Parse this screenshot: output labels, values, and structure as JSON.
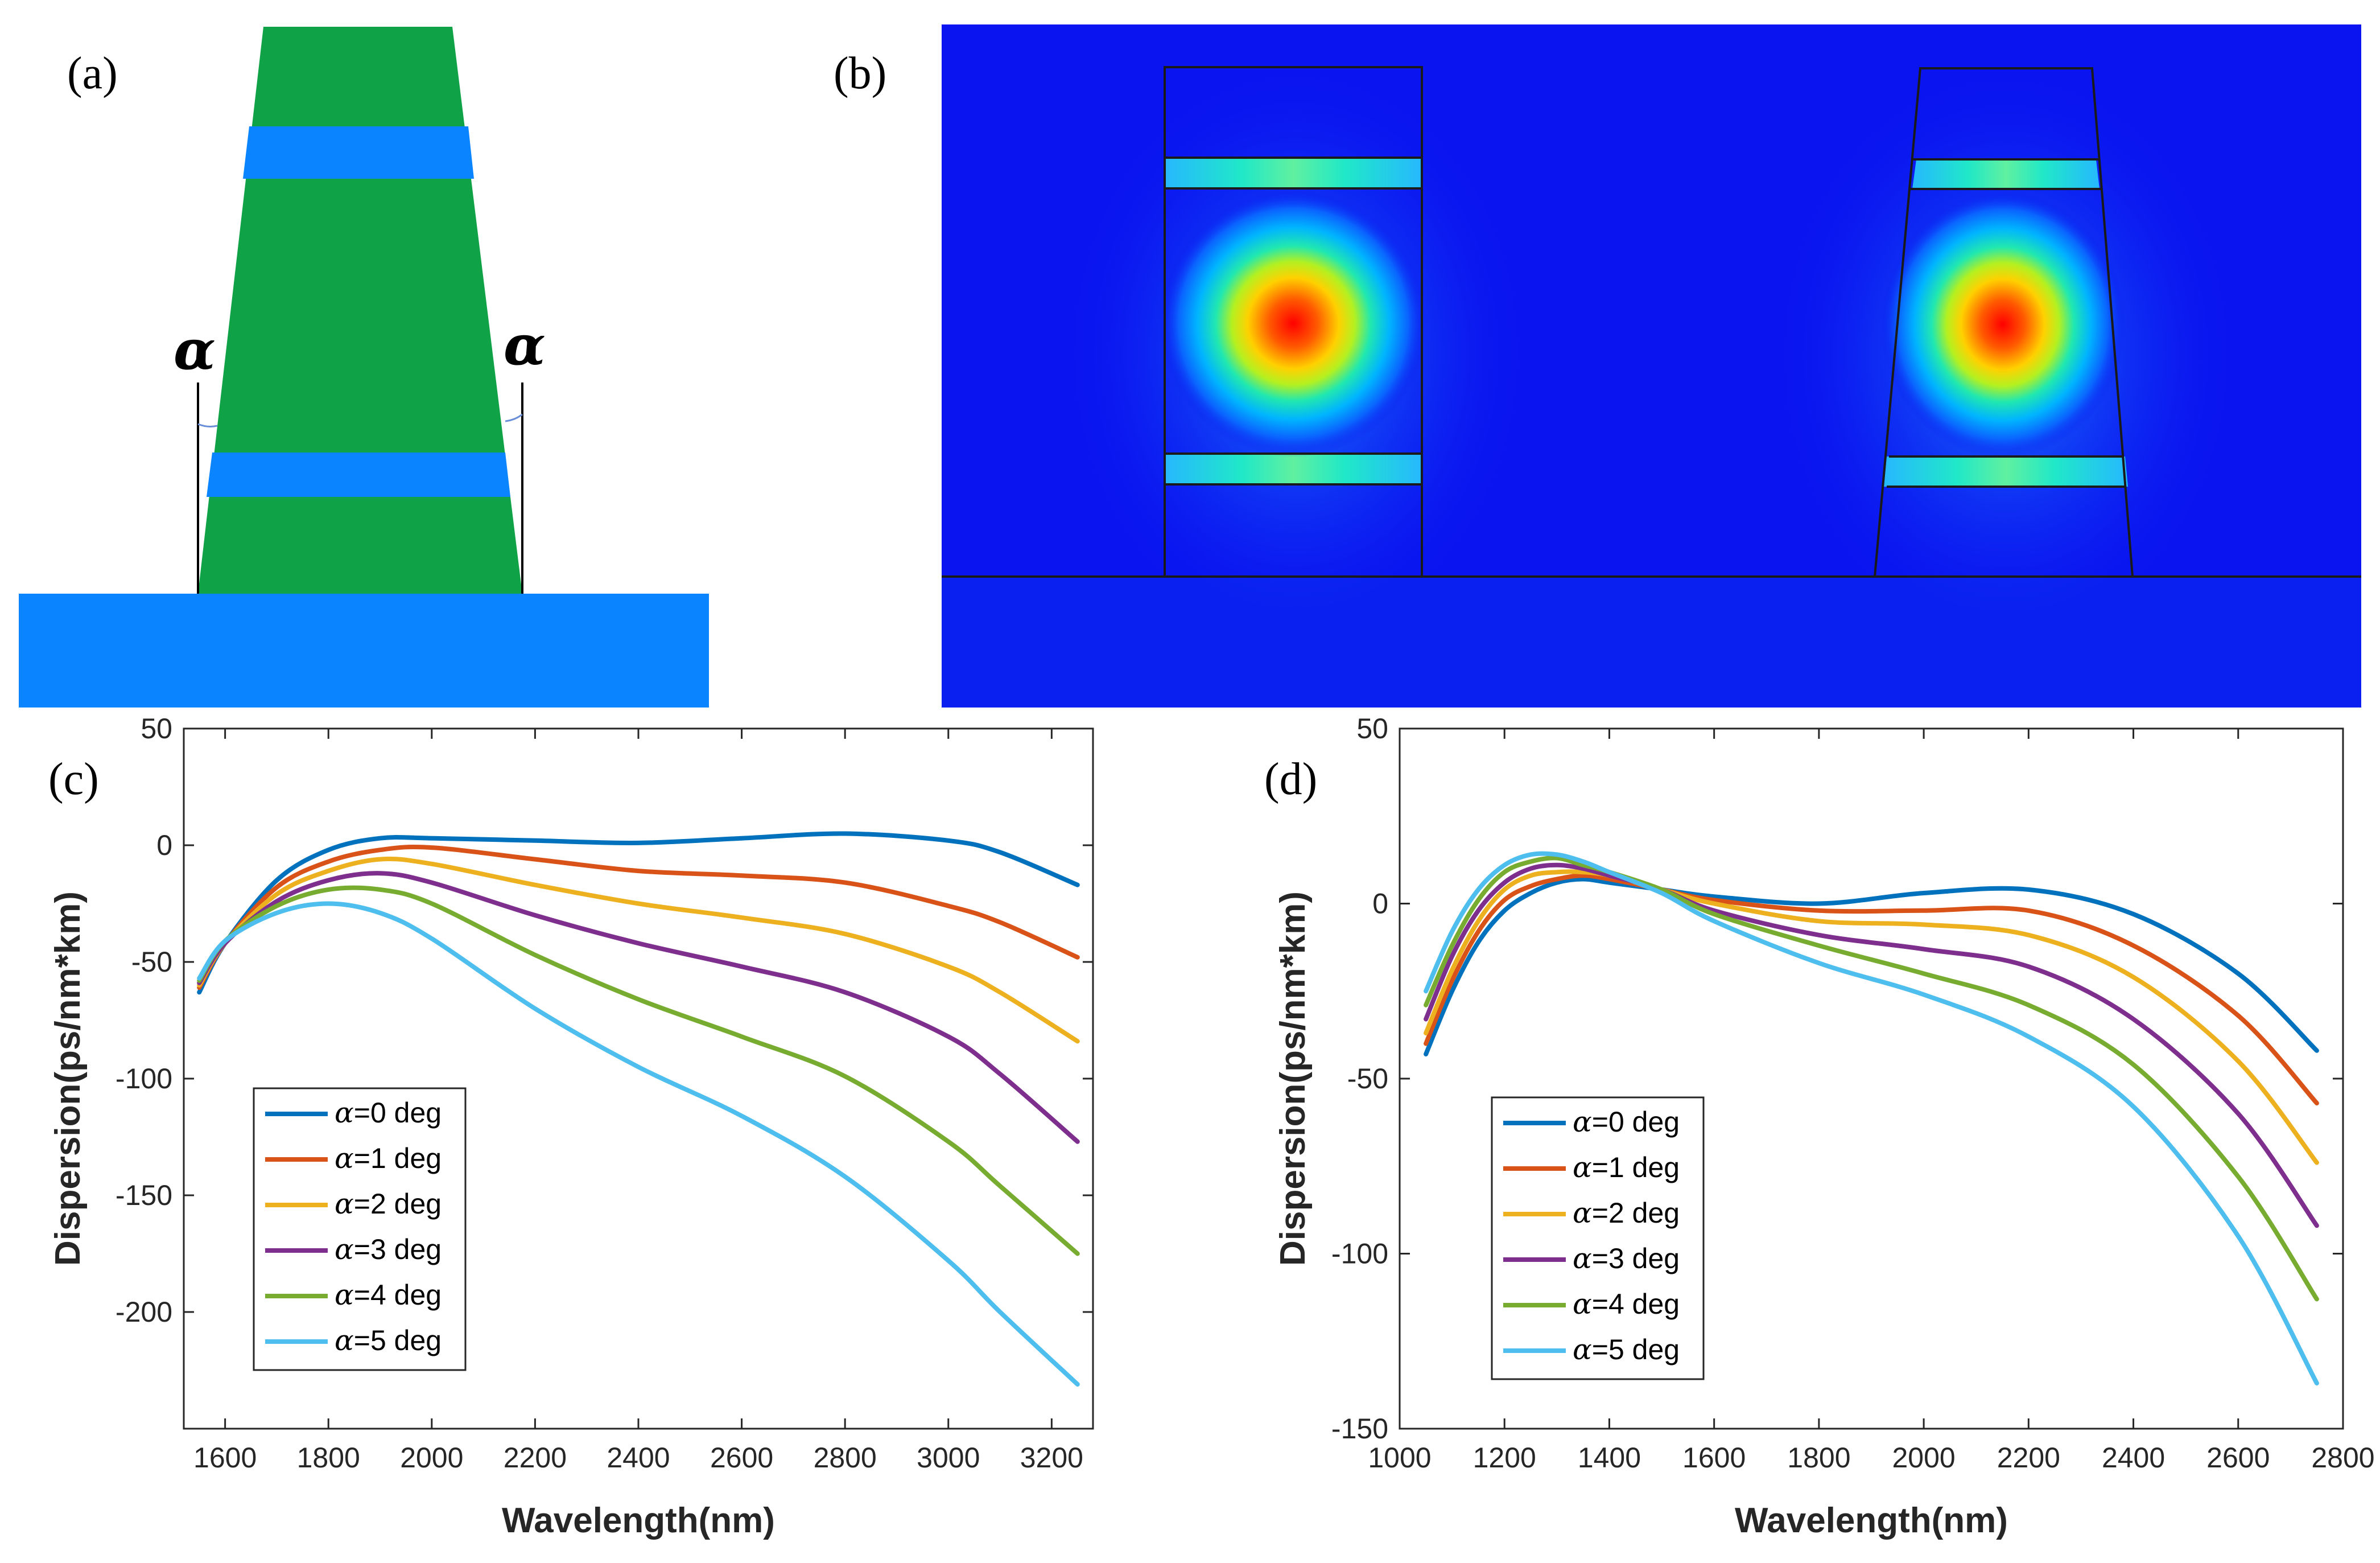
{
  "figure": {
    "labels": {
      "a": "(a)",
      "b": "(b)",
      "c": "(c)",
      "d": "(d)"
    },
    "panel_a": {
      "angle_symbol": "α",
      "colors": {
        "core": "#10a246",
        "layer": "#0a84ff",
        "substrate": "#0a84ff"
      }
    },
    "panel_b": {
      "colors": {
        "background": "#0a14f0",
        "outline": "#1a1a1a",
        "hot": "#ff0000"
      }
    }
  },
  "chart_data": [
    {
      "id": "c",
      "type": "line",
      "xlabel": "Wavelength(nm)",
      "ylabel": "Dispersion(ps/nm*km)",
      "xlim": [
        1520,
        3280
      ],
      "ylim": [
        -250,
        50
      ],
      "xticks": [
        1600,
        1800,
        2000,
        2200,
        2400,
        2600,
        2800,
        3000,
        3200
      ],
      "yticks": [
        50,
        0,
        -50,
        -100,
        -150,
        -200
      ],
      "legend_position": "bottom-left",
      "x": [
        1550,
        1600,
        1700,
        1800,
        1900,
        2000,
        2200,
        2400,
        2600,
        2800,
        3000,
        3100,
        3250
      ],
      "series": [
        {
          "name": "=0 deg",
          "color": "#0072BD",
          "values": [
            -63,
            -42,
            -15,
            -2,
            3,
            3,
            2,
            1,
            3,
            5,
            2,
            -3,
            -17
          ]
        },
        {
          "name": "=1 deg",
          "color": "#D95319",
          "values": [
            -61,
            -42,
            -18,
            -7,
            -2,
            -1,
            -6,
            -11,
            -13,
            -16,
            -26,
            -33,
            -48
          ]
        },
        {
          "name": "=2 deg",
          "color": "#EDB120",
          "values": [
            -60,
            -42,
            -21,
            -11,
            -6,
            -8,
            -17,
            -25,
            -31,
            -38,
            -52,
            -63,
            -84
          ]
        },
        {
          "name": "=3 deg",
          "color": "#7E2F8E",
          "values": [
            -59,
            -42,
            -24,
            -15,
            -12,
            -16,
            -30,
            -42,
            -52,
            -63,
            -82,
            -98,
            -127
          ]
        },
        {
          "name": "=4 deg",
          "color": "#77AC30",
          "values": [
            -58,
            -41,
            -26,
            -19,
            -19,
            -25,
            -47,
            -66,
            -82,
            -99,
            -127,
            -146,
            -175
          ]
        },
        {
          "name": "=5 deg",
          "color": "#4DBEEE",
          "values": [
            -57,
            -41,
            -29,
            -25,
            -29,
            -40,
            -70,
            -95,
            -116,
            -142,
            -178,
            -200,
            -231
          ]
        }
      ]
    },
    {
      "id": "d",
      "type": "line",
      "xlabel": "Wavelength(nm)",
      "ylabel": "Dispersion(ps/nm*km)",
      "xlim": [
        1000,
        2800
      ],
      "ylim": [
        -150,
        50
      ],
      "xticks": [
        1000,
        1200,
        1400,
        1600,
        1800,
        2000,
        2200,
        2400,
        2600,
        2800
      ],
      "yticks": [
        50,
        0,
        -50,
        -100,
        -150
      ],
      "legend_position": "bottom-left",
      "x": [
        1050,
        1100,
        1150,
        1200,
        1250,
        1300,
        1350,
        1400,
        1500,
        1600,
        1800,
        2000,
        2200,
        2400,
        2600,
        2750
      ],
      "series": [
        {
          "name": "=0 deg",
          "color": "#0072BD",
          "values": [
            -43,
            -25,
            -11,
            -2,
            3,
            6,
            7,
            6,
            4,
            2,
            0,
            3,
            4,
            -3,
            -20,
            -42
          ]
        },
        {
          "name": "=1 deg",
          "color": "#D95319",
          "values": [
            -40,
            -22,
            -8,
            1,
            5,
            7,
            8,
            7,
            4,
            1,
            -2,
            -2,
            -2,
            -12,
            -32,
            -57
          ]
        },
        {
          "name": "=2 deg",
          "color": "#EDB120",
          "values": [
            -37,
            -19,
            -5,
            4,
            8,
            9,
            9,
            8,
            4,
            0,
            -5,
            -6,
            -9,
            -21,
            -45,
            -74
          ]
        },
        {
          "name": "=3 deg",
          "color": "#7E2F8E",
          "values": [
            -33,
            -15,
            -2,
            6,
            10,
            11,
            10,
            8,
            4,
            -2,
            -9,
            -13,
            -18,
            -33,
            -60,
            -92
          ]
        },
        {
          "name": "=4 deg",
          "color": "#77AC30",
          "values": [
            -29,
            -12,
            1,
            9,
            12,
            13,
            11,
            9,
            4,
            -3,
            -12,
            -20,
            -29,
            -46,
            -78,
            -113
          ]
        },
        {
          "name": "=5 deg",
          "color": "#4DBEEE",
          "values": [
            -25,
            -8,
            4,
            11,
            14,
            14,
            12,
            9,
            3,
            -5,
            -17,
            -26,
            -38,
            -58,
            -95,
            -137
          ]
        }
      ]
    }
  ]
}
